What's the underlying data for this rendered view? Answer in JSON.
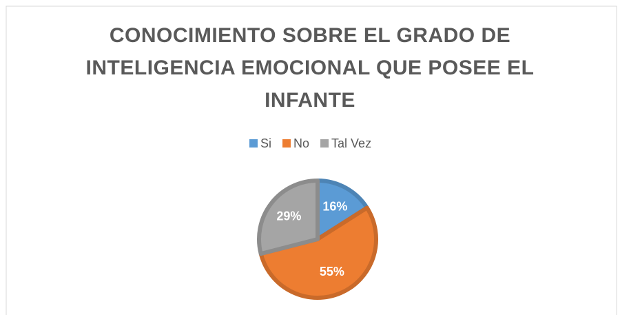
{
  "chart_data": {
    "type": "pie",
    "title": "CONOCIMIENTO SOBRE EL GRADO DE INTELIGENCIA EMOCIONAL QUE POSEE EL INFANTE",
    "categories": [
      "Si",
      "No",
      "Tal Vez"
    ],
    "values": [
      16,
      55,
      29
    ],
    "value_labels": [
      "16%",
      "55%",
      "29%"
    ],
    "colors": [
      "#5b9bd5",
      "#ed7d31",
      "#a5a5a5"
    ],
    "legend": "top"
  }
}
